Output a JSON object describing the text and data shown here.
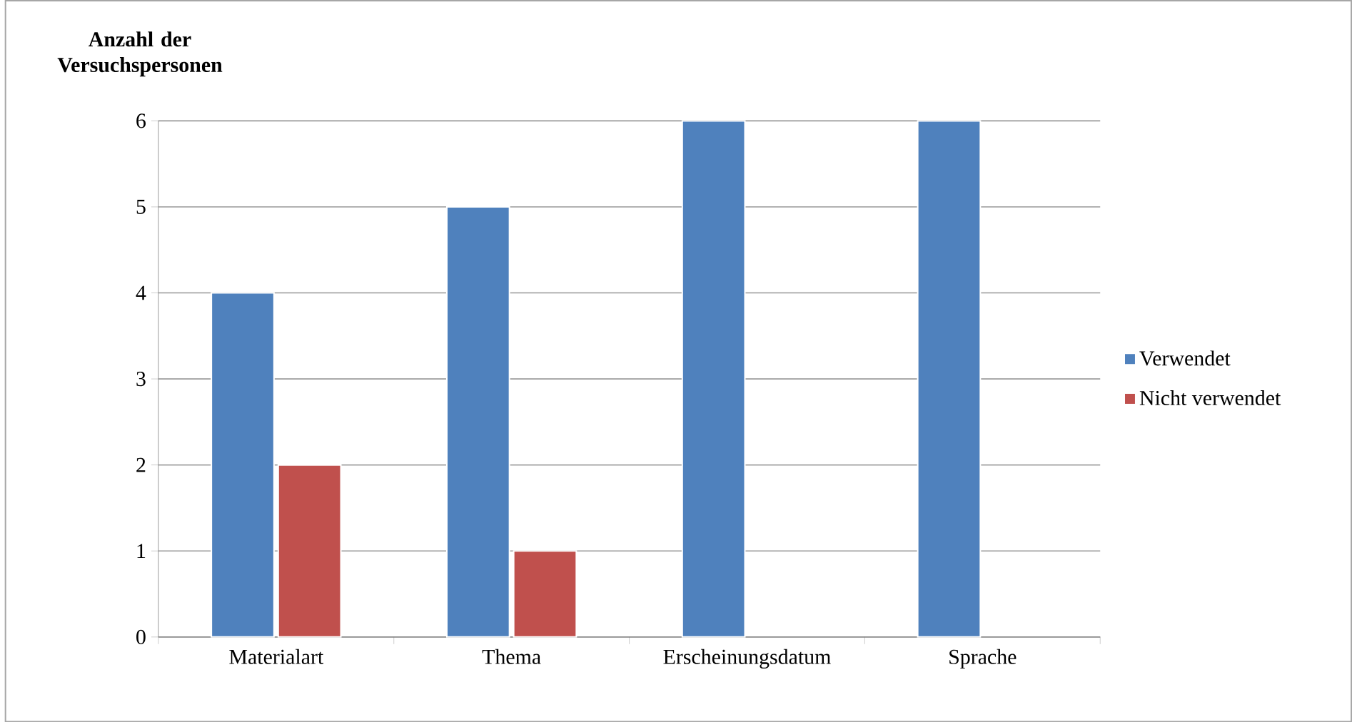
{
  "chart_data": {
    "type": "bar",
    "ylabel": "Anzahl der Versuchspersonen",
    "categories": [
      "Materialart",
      "Thema",
      "Erscheinungsdatum",
      "Sprache"
    ],
    "series": [
      {
        "name": "Verwendet",
        "color": "#4f81bd",
        "values": [
          4,
          5,
          6,
          6
        ]
      },
      {
        "name": "Nicht verwendet",
        "color": "#c0504d",
        "values": [
          2,
          1,
          null,
          null
        ]
      }
    ],
    "ylim": [
      0,
      6
    ],
    "yticks": [
      0,
      1,
      2,
      3,
      4,
      5,
      6
    ],
    "grid": "y",
    "legend": "right"
  }
}
